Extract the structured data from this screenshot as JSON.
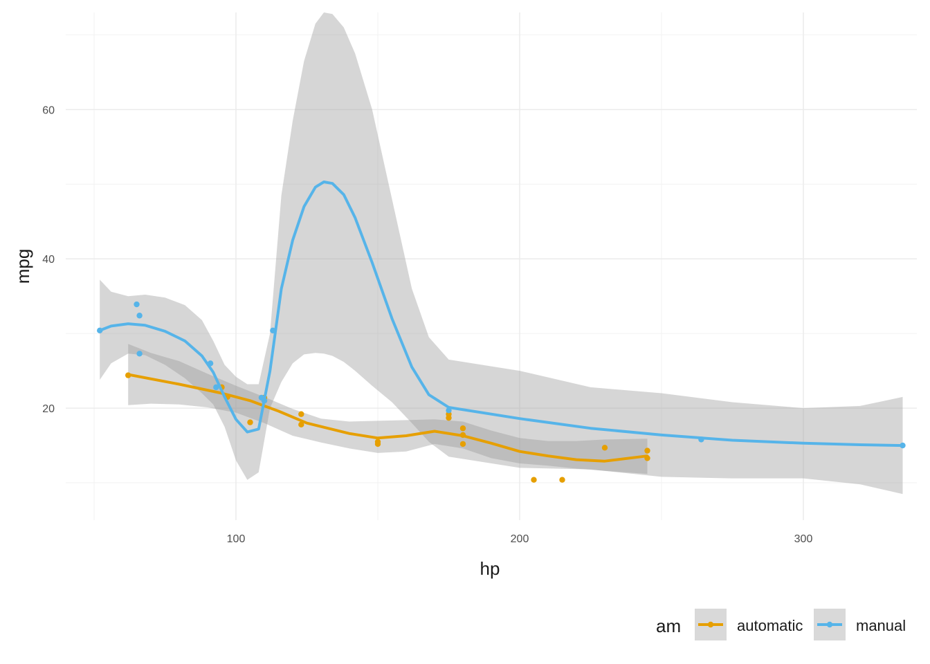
{
  "chart_data": {
    "type": "scatter",
    "title": "",
    "xlabel": "hp",
    "ylabel": "mpg",
    "xlim": [
      40,
      340
    ],
    "ylim": [
      5,
      73
    ],
    "x_major_ticks": [
      100,
      200,
      300
    ],
    "x_minor_ticks": [
      50,
      150,
      250
    ],
    "y_major_ticks": [
      20,
      40,
      60
    ],
    "y_minor_ticks": [
      10,
      30,
      50,
      70
    ],
    "grid": true,
    "legend": {
      "title": "am",
      "position": "bottom-right"
    },
    "ribbon_color": "#999999",
    "series": [
      {
        "name": "automatic",
        "color": "#E69F00",
        "points": [
          [
            62,
            24.4
          ],
          [
            95,
            22.8
          ],
          [
            97,
            21.5
          ],
          [
            105,
            18.1
          ],
          [
            110,
            21.4
          ],
          [
            110,
            21.0
          ],
          [
            123,
            19.2
          ],
          [
            123,
            17.8
          ],
          [
            150,
            15.5
          ],
          [
            150,
            15.2
          ],
          [
            175,
            18.7
          ],
          [
            175,
            19.2
          ],
          [
            180,
            16.4
          ],
          [
            180,
            17.3
          ],
          [
            180,
            15.2
          ],
          [
            205,
            10.4
          ],
          [
            215,
            10.4
          ],
          [
            230,
            14.7
          ],
          [
            245,
            14.3
          ],
          [
            245,
            13.3
          ]
        ],
        "smooth": [
          [
            62,
            24.5
          ],
          [
            80,
            23.2
          ],
          [
            95,
            22.0
          ],
          [
            105,
            21.0
          ],
          [
            115,
            19.6
          ],
          [
            125,
            18.0
          ],
          [
            140,
            16.6
          ],
          [
            150,
            16.0
          ],
          [
            160,
            16.3
          ],
          [
            170,
            16.9
          ],
          [
            180,
            16.3
          ],
          [
            190,
            15.3
          ],
          [
            200,
            14.2
          ],
          [
            210,
            13.6
          ],
          [
            220,
            13.1
          ],
          [
            230,
            12.9
          ],
          [
            245,
            13.6
          ]
        ],
        "ribbon_upper": [
          [
            62,
            28.6
          ],
          [
            70,
            27.4
          ],
          [
            80,
            26.3
          ],
          [
            90,
            24.6
          ],
          [
            100,
            23.0
          ],
          [
            110,
            21.5
          ],
          [
            120,
            19.9
          ],
          [
            130,
            18.6
          ],
          [
            140,
            18.2
          ],
          [
            150,
            18.3
          ],
          [
            160,
            18.4
          ],
          [
            170,
            18.5
          ],
          [
            180,
            18.2
          ],
          [
            190,
            17.0
          ],
          [
            200,
            16.0
          ],
          [
            210,
            15.6
          ],
          [
            220,
            15.6
          ],
          [
            230,
            15.8
          ],
          [
            245,
            15.9
          ]
        ],
        "ribbon_lower": [
          [
            62,
            20.4
          ],
          [
            70,
            20.6
          ],
          [
            80,
            20.5
          ],
          [
            90,
            20.1
          ],
          [
            100,
            19.4
          ],
          [
            110,
            18.0
          ],
          [
            120,
            16.3
          ],
          [
            130,
            15.4
          ],
          [
            140,
            14.6
          ],
          [
            150,
            14.0
          ],
          [
            160,
            14.2
          ],
          [
            170,
            15.2
          ],
          [
            180,
            14.6
          ],
          [
            190,
            13.3
          ],
          [
            200,
            12.6
          ],
          [
            210,
            12.3
          ],
          [
            220,
            11.9
          ],
          [
            230,
            11.6
          ],
          [
            245,
            11.2
          ]
        ]
      },
      {
        "name": "manual",
        "color": "#56B4E9",
        "points": [
          [
            52,
            30.4
          ],
          [
            65,
            33.9
          ],
          [
            66,
            32.4
          ],
          [
            66,
            27.3
          ],
          [
            91,
            26.0
          ],
          [
            93,
            22.8
          ],
          [
            109,
            21.4
          ],
          [
            110,
            21.0
          ],
          [
            113,
            30.4
          ],
          [
            175,
            19.7
          ],
          [
            264,
            15.8
          ],
          [
            335,
            15.0
          ]
        ],
        "smooth": [
          [
            52,
            30.4
          ],
          [
            56,
            31.0
          ],
          [
            62,
            31.3
          ],
          [
            68,
            31.1
          ],
          [
            75,
            30.3
          ],
          [
            82,
            29.0
          ],
          [
            88,
            27.0
          ],
          [
            92,
            24.8
          ],
          [
            96,
            21.5
          ],
          [
            100,
            18.5
          ],
          [
            104,
            16.8
          ],
          [
            108,
            17.2
          ],
          [
            112,
            25.0
          ],
          [
            116,
            36.0
          ],
          [
            120,
            42.5
          ],
          [
            124,
            47.0
          ],
          [
            128,
            49.6
          ],
          [
            131,
            50.3
          ],
          [
            134,
            50.1
          ],
          [
            138,
            48.6
          ],
          [
            142,
            45.5
          ],
          [
            148,
            39.5
          ],
          [
            155,
            32.0
          ],
          [
            162,
            25.5
          ],
          [
            168,
            21.8
          ],
          [
            175,
            20.1
          ],
          [
            200,
            18.6
          ],
          [
            225,
            17.3
          ],
          [
            250,
            16.4
          ],
          [
            275,
            15.7
          ],
          [
            300,
            15.3
          ],
          [
            320,
            15.1
          ],
          [
            335,
            15.0
          ]
        ],
        "ribbon_upper": [
          [
            52,
            37.2
          ],
          [
            56,
            35.6
          ],
          [
            62,
            35.0
          ],
          [
            68,
            35.2
          ],
          [
            75,
            34.8
          ],
          [
            82,
            33.8
          ],
          [
            88,
            31.8
          ],
          [
            92,
            29.0
          ],
          [
            96,
            25.8
          ],
          [
            100,
            24.2
          ],
          [
            104,
            23.2
          ],
          [
            108,
            23.2
          ],
          [
            112,
            30.0
          ],
          [
            116,
            48.5
          ],
          [
            120,
            58.5
          ],
          [
            124,
            66.5
          ],
          [
            128,
            71.5
          ],
          [
            131,
            73.0
          ],
          [
            134,
            72.8
          ],
          [
            138,
            71.0
          ],
          [
            142,
            67.5
          ],
          [
            148,
            60.0
          ],
          [
            155,
            48.0
          ],
          [
            162,
            36.0
          ],
          [
            168,
            29.5
          ],
          [
            175,
            26.5
          ],
          [
            200,
            25.0
          ],
          [
            225,
            22.8
          ],
          [
            250,
            22.0
          ],
          [
            275,
            20.8
          ],
          [
            300,
            20.0
          ],
          [
            320,
            20.3
          ],
          [
            335,
            21.5
          ]
        ],
        "ribbon_lower": [
          [
            52,
            23.8
          ],
          [
            56,
            26.0
          ],
          [
            62,
            27.3
          ],
          [
            68,
            27.1
          ],
          [
            75,
            25.8
          ],
          [
            82,
            24.0
          ],
          [
            88,
            22.0
          ],
          [
            92,
            20.5
          ],
          [
            96,
            17.5
          ],
          [
            100,
            13.0
          ],
          [
            104,
            10.4
          ],
          [
            108,
            11.4
          ],
          [
            112,
            20.0
          ],
          [
            116,
            23.5
          ],
          [
            120,
            26.0
          ],
          [
            124,
            27.2
          ],
          [
            128,
            27.4
          ],
          [
            131,
            27.3
          ],
          [
            134,
            27.0
          ],
          [
            138,
            26.2
          ],
          [
            142,
            25.0
          ],
          [
            148,
            23.0
          ],
          [
            155,
            20.8
          ],
          [
            162,
            18.0
          ],
          [
            168,
            15.5
          ],
          [
            175,
            13.5
          ],
          [
            200,
            12.0
          ],
          [
            225,
            11.8
          ],
          [
            250,
            10.8
          ],
          [
            275,
            10.6
          ],
          [
            300,
            10.6
          ],
          [
            320,
            9.8
          ],
          [
            335,
            8.5
          ]
        ]
      }
    ]
  }
}
